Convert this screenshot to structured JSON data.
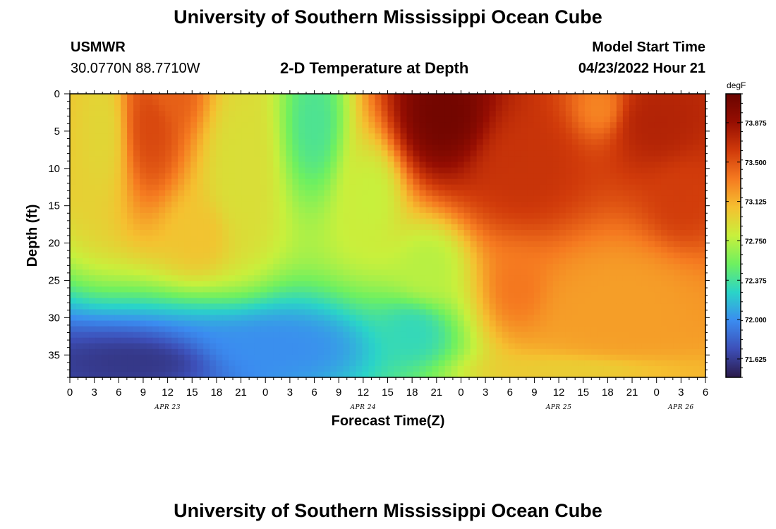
{
  "header": {
    "title": "University of Southern Mississippi Ocean Cube",
    "station": "USMWR",
    "coords": "30.0770N  88.7710W",
    "subtitle": "2-D Temperature at Depth",
    "model_label": "Model Start Time",
    "model_time": "04/23/2022 Hour 21"
  },
  "footer": {
    "title": "University of Southern Mississippi Ocean Cube"
  },
  "colorbar": {
    "unit": "degF",
    "ticks": [
      73.875,
      73.5,
      73.125,
      72.75,
      72.375,
      72.0,
      71.625
    ],
    "tick_labels": [
      "73.875",
      "73.500",
      "73.125",
      "72.750",
      "72.375",
      "72.000",
      "71.625"
    ],
    "range": [
      71.45,
      74.15
    ],
    "colors": [
      "#2b1a4a",
      "#3d4fb8",
      "#3b8cf0",
      "#2ad4c8",
      "#6ef060",
      "#c8f03c",
      "#f5c030",
      "#f57a20",
      "#d03a0a",
      "#960e02",
      "#6a0400"
    ]
  },
  "chart_data": {
    "type": "heatmap",
    "xlabel": "Forecast Time(Z)",
    "ylabel": "Depth (ft)",
    "x_range_hours": [
      0,
      78
    ],
    "y_range": [
      0,
      38
    ],
    "y_inverted": true,
    "x_tick_labels": [
      "0",
      "3",
      "6",
      "9",
      "12",
      "15",
      "18",
      "21",
      "0",
      "3",
      "6",
      "9",
      "12",
      "15",
      "18",
      "21",
      "0",
      "3",
      "6",
      "9",
      "12",
      "15",
      "18",
      "21",
      "0",
      "3",
      "6"
    ],
    "y_ticks": [
      0,
      5,
      10,
      15,
      20,
      25,
      30,
      35
    ],
    "y_tick_labels": [
      "0",
      "5",
      "10",
      "15",
      "20",
      "25",
      "30",
      "35"
    ],
    "date_labels": [
      {
        "text": "APR 23",
        "hour": 12
      },
      {
        "text": "APR 24",
        "hour": 36
      },
      {
        "text": "APR 25",
        "hour": 60
      },
      {
        "text": "APR 26",
        "hour": 75
      }
    ],
    "z_unit": "degF",
    "z_range": [
      71.45,
      74.15
    ],
    "hotspots": [
      {
        "x": 10,
        "y": 4,
        "v": 73.55,
        "rx": 3.2,
        "ry": 8
      },
      {
        "x": 12,
        "y": 0,
        "v": 73.45,
        "rx": 4,
        "ry": 5
      },
      {
        "x": 16,
        "y": 19,
        "v": 73.05,
        "rx": 4,
        "ry": 5
      },
      {
        "x": 21,
        "y": 10,
        "v": 72.9,
        "rx": 4,
        "ry": 12
      },
      {
        "x": 4,
        "y": 5,
        "v": 72.95,
        "rx": 3,
        "ry": 10
      },
      {
        "x": 30,
        "y": 4,
        "v": 72.4,
        "rx": 3.5,
        "ry": 9
      },
      {
        "x": 37,
        "y": 14,
        "v": 72.8,
        "rx": 4,
        "ry": 8
      },
      {
        "x": 46,
        "y": 3,
        "v": 74.1,
        "rx": 6,
        "ry": 8
      },
      {
        "x": 56,
        "y": 10,
        "v": 73.65,
        "rx": 8,
        "ry": 9
      },
      {
        "x": 72,
        "y": 4,
        "v": 73.75,
        "rx": 7,
        "ry": 7
      },
      {
        "x": 75,
        "y": 14,
        "v": 73.6,
        "rx": 5,
        "ry": 7
      },
      {
        "x": 65,
        "y": 2,
        "v": 73.3,
        "rx": 4,
        "ry": 5
      },
      {
        "x": 68,
        "y": 28,
        "v": 73.2,
        "rx": 11,
        "ry": 9
      },
      {
        "x": 55,
        "y": 26,
        "v": 73.35,
        "rx": 4,
        "ry": 6
      },
      {
        "x": 42,
        "y": 32,
        "v": 72.3,
        "rx": 5,
        "ry": 5
      },
      {
        "x": 8,
        "y": 36,
        "v": 71.6,
        "rx": 12,
        "ry": 4
      },
      {
        "x": 25,
        "y": 34,
        "v": 72.0,
        "rx": 12,
        "ry": 5
      },
      {
        "x": 44,
        "y": 23,
        "v": 72.75,
        "rx": 5,
        "ry": 6
      },
      {
        "x": 62,
        "y": 37,
        "v": 73.0,
        "rx": 12,
        "ry": 2
      }
    ]
  }
}
